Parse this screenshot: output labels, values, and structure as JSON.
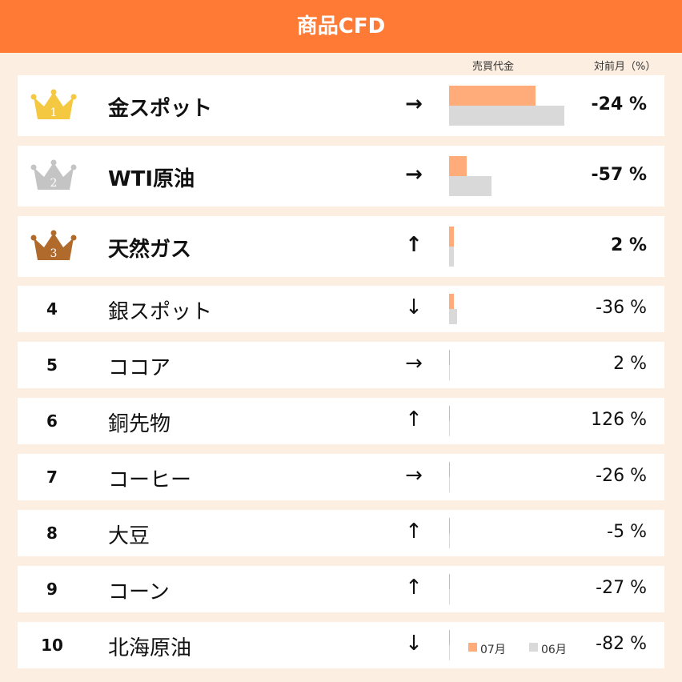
{
  "header": {
    "title": "商品CFD"
  },
  "columns": {
    "volume": "売買代金",
    "change": "対前月（%）"
  },
  "legend": [
    {
      "name": "07月",
      "color": "#ffac7a"
    },
    {
      "name": "06月",
      "color": "#d9d9d9"
    }
  ],
  "rows": [
    {
      "rank": 1,
      "name": "金スポット",
      "trend": "→",
      "volume": [
        75,
        100
      ],
      "change": "-24 %"
    },
    {
      "rank": 2,
      "name": "WTI原油",
      "trend": "→",
      "volume": [
        15,
        37
      ],
      "change": "-57 %"
    },
    {
      "rank": 3,
      "name": "天然ガス",
      "trend": "↑",
      "volume": [
        4,
        4
      ],
      "change": "2 %"
    },
    {
      "rank": 4,
      "name": "銀スポット",
      "trend": "↓",
      "volume": [
        4,
        7
      ],
      "change": "-36 %"
    },
    {
      "rank": 5,
      "name": "ココア",
      "trend": "→",
      "volume": [
        1,
        1
      ],
      "change": "2 %"
    },
    {
      "rank": 6,
      "name": "銅先物",
      "trend": "↑",
      "volume": [
        1,
        1
      ],
      "change": "126 %"
    },
    {
      "rank": 7,
      "name": "コーヒー",
      "trend": "→",
      "volume": [
        1,
        1
      ],
      "change": "-26 %"
    },
    {
      "rank": 8,
      "name": "大豆",
      "trend": "↑",
      "volume": [
        1,
        1
      ],
      "change": "-5 %"
    },
    {
      "rank": 9,
      "name": "コーン",
      "trend": "↑",
      "volume": [
        1,
        1
      ],
      "change": "-27 %"
    },
    {
      "rank": 10,
      "name": "北海原油",
      "trend": "↓",
      "volume": [
        1,
        1
      ],
      "change": "-82 %"
    }
  ]
}
